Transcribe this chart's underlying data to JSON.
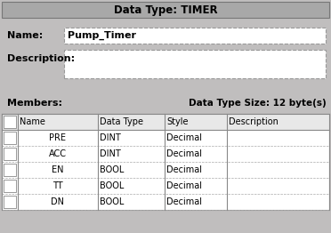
{
  "title": "Data Type: TIMER",
  "name_label": "Name:",
  "name_value": "Pump_Timer",
  "desc_label": "Description:",
  "members_label": "Members:",
  "size_label": "Data Type Size: 12 byte(s)",
  "table_headers": [
    "Name",
    "Data Type",
    "Style",
    "Description"
  ],
  "table_rows": [
    [
      "PRE",
      "DINT",
      "Decimal",
      ""
    ],
    [
      "ACC",
      "DINT",
      "Decimal",
      ""
    ],
    [
      "EN",
      "BOOL",
      "Decimal",
      ""
    ],
    [
      "TT",
      "BOOL",
      "Decimal",
      ""
    ],
    [
      "DN",
      "BOOL",
      "Decimal",
      ""
    ]
  ],
  "title_bg": "#a8a8a8",
  "dialog_bg": "#c0bebe",
  "table_bg": "#ffffff",
  "title_text_color": "#000000",
  "body_text_color": "#000000",
  "figsize": [
    3.72,
    2.62
  ],
  "dpi": 100
}
